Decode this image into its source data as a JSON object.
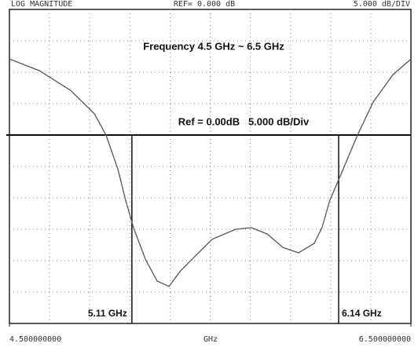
{
  "chart_data": {
    "type": "line",
    "header_left": "LOG MAGNITUDE",
    "header_center": "REF= 0.000 dB",
    "header_right": "5.000 dB/DIV",
    "title": "Frequency 4.5 GHz ~ 6.5 GHz",
    "ref_label": "Ref = 0.00dB   5.000 dB/Div",
    "ref_value": 0,
    "x_label": "GHz",
    "xlim": [
      4.5,
      6.5
    ],
    "ylim": [
      -30,
      20
    ],
    "xticks": [
      {
        "value": 4.5,
        "label": "4.500000000"
      },
      {
        "value": 6.5,
        "label": "6.500000000"
      }
    ],
    "divisions": 10,
    "grid": true,
    "x": [
      4.5,
      4.649,
      4.805,
      4.923,
      4.981,
      5.04,
      5.079,
      5.118,
      5.177,
      5.236,
      5.295,
      5.353,
      5.431,
      5.51,
      5.627,
      5.705,
      5.784,
      5.862,
      5.94,
      6.018,
      6.057,
      6.096,
      6.155,
      6.234,
      6.312,
      6.41,
      6.5
    ],
    "series": [
      {
        "color": "#555555",
        "values": [
          12.1,
          10.25,
          7.1,
          3.4,
          0,
          -5.4,
          -10.4,
          -14.75,
          -19.75,
          -23.25,
          -24.1,
          -21.6,
          -19.1,
          -16.6,
          -15,
          -14.75,
          -15.75,
          -17.9,
          -18.75,
          -17.25,
          -14.75,
          -10.4,
          -6,
          0,
          5.25,
          9.6,
          12.1
        ]
      }
    ],
    "markers": [
      {
        "x": 5.11,
        "label": "5.11 GHz"
      },
      {
        "x": 6.14,
        "label": "6.14 GHz"
      }
    ]
  }
}
